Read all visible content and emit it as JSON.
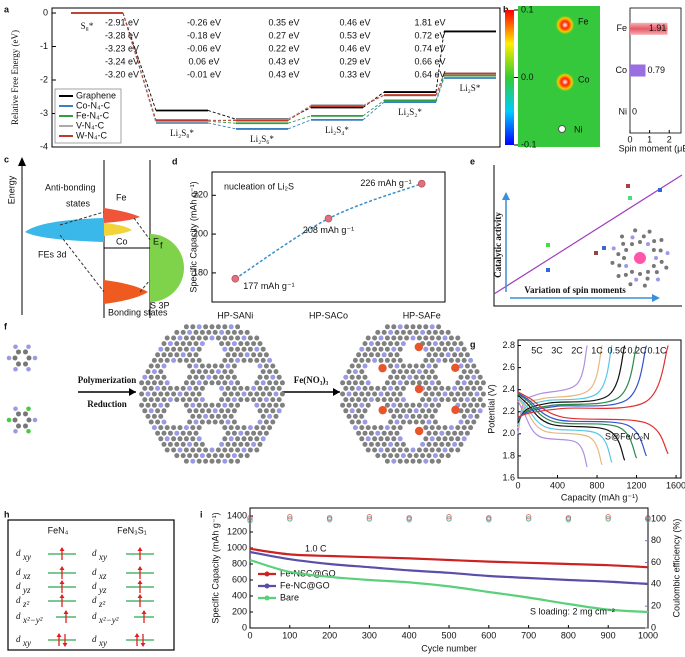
{
  "panel_labels": [
    "a",
    "b",
    "c",
    "d",
    "e",
    "f",
    "g",
    "h",
    "i"
  ],
  "chart_data": [
    {
      "type": "step",
      "ylabel": "Relative Free Energy (eV)",
      "ylim": [
        -4,
        0.15
      ],
      "yticks": [
        0,
        -1,
        -2,
        -3,
        -4
      ],
      "categories": [
        "S₈*",
        "Li₂S₈*",
        "Li₂S₆*",
        "Li₂S₄*",
        "Li₂S₂*",
        "Li₂S*"
      ],
      "legend": "lower left",
      "series": [
        {
          "name": "Graphene",
          "color": "#000000",
          "values": [
            0,
            -2.91,
            -3.17,
            -2.82,
            -2.36,
            -0.55
          ],
          "energy_labels": [
            "-2.91 eV",
            "-0.26 eV",
            "0.35 eV",
            "0.46 eV",
            "1.81 eV"
          ]
        },
        {
          "name": "Co-N₄-C",
          "color": "#3a7fc0",
          "values": [
            0,
            -3.28,
            -3.46,
            -3.19,
            -2.66,
            -1.94
          ],
          "energy_labels": [
            "-3.28 eV",
            "-0.18 eV",
            "0.27 eV",
            "0.53 eV",
            "0.72 eV"
          ]
        },
        {
          "name": "Fe-N₄-C",
          "color": "#2e9e3e",
          "values": [
            0,
            -3.23,
            -3.29,
            -3.07,
            -2.61,
            -1.87
          ],
          "energy_labels": [
            "-3.23 eV",
            "-0.06 eV",
            "0.22 eV",
            "0.46 eV",
            "0.74 eV"
          ]
        },
        {
          "name": "V-N₄-C",
          "color": "#aaaaaa",
          "values": [
            0,
            -3.24,
            -3.18,
            -2.75,
            -2.46,
            -1.8
          ],
          "energy_labels": [
            "-3.24 eV",
            "0.06 eV",
            "0.43 eV",
            "0.29 eV",
            "0.66 eV"
          ]
        },
        {
          "name": "W-N₄-C",
          "color": "#c0392b",
          "values": [
            0,
            -3.2,
            -3.21,
            -2.78,
            -2.45,
            -1.81
          ],
          "energy_labels": [
            "-3.20 eV",
            "-0.01 eV",
            "0.43 eV",
            "0.33 eV",
            "0.64 eV"
          ]
        }
      ]
    },
    {
      "type": "hbar",
      "categories": [
        "Fe",
        "Co",
        "Ni"
      ],
      "values": [
        1.91,
        0.79,
        0
      ],
      "colors": [
        "#e45a66",
        "#9a6ee0",
        "#888888"
      ],
      "xlabel": "Spin moment (μB)",
      "xlim": [
        0,
        2.6
      ],
      "xticks": [
        0,
        1,
        2
      ]
    },
    {
      "type": "scatter",
      "title": "nucleation of Li₂S",
      "ylabel": "Specific Capacity (mAh g⁻¹)",
      "categories": [
        "HP-SANi",
        "HP-SACo",
        "HP-SAFe"
      ],
      "values": [
        177,
        208,
        226
      ],
      "value_labels": [
        "177 mAh g⁻¹",
        "208 mAh g⁻¹",
        "226 mAh g⁻¹"
      ],
      "ylim": [
        165,
        232
      ],
      "yticks": [
        180,
        200,
        220
      ],
      "color": "#e07080",
      "line_color": "#3a8ec8"
    },
    {
      "type": "line",
      "xlabel": "Capacity (mAh g⁻¹)",
      "ylabel": "Potential (V)",
      "xlim": [
        0,
        1650
      ],
      "ylim": [
        1.6,
        2.85
      ],
      "xticks": [
        0,
        400,
        800,
        1200,
        1600
      ],
      "yticks": [
        1.6,
        1.8,
        {
          "value": 2,
          "label": "2.0"
        },
        2.2,
        2.4,
        2.6,
        2.8
      ],
      "annotation": "S@Fe/C₂N",
      "annotation_color": "#e03030",
      "series": [
        {
          "name": "5C",
          "color": "#b08fe0",
          "x": [
            0,
            56,
            210,
            595,
            700
          ],
          "discharge": [
            2.3,
            2.2,
            1.98,
            1.92,
            1.7
          ],
          "charge": [
            2.0,
            2.28,
            2.36,
            2.45,
            2.8
          ]
        },
        {
          "name": "3C",
          "color": "#e6b880",
          "x": [
            0,
            68,
            255,
            723,
            850
          ],
          "discharge": [
            2.32,
            2.24,
            2.03,
            1.97,
            1.72
          ],
          "charge": [
            2.05,
            2.26,
            2.32,
            2.4,
            2.8
          ]
        },
        {
          "name": "2C",
          "color": "#55c8e8",
          "x": [
            0,
            76,
            285,
            808,
            950
          ],
          "discharge": [
            2.33,
            2.26,
            2.06,
            2.0,
            1.74
          ],
          "charge": [
            2.08,
            2.24,
            2.3,
            2.37,
            2.8
          ]
        },
        {
          "name": "1C",
          "color": "#111111",
          "x": [
            0,
            86,
            324,
            918,
            1080
          ],
          "discharge": [
            2.35,
            2.28,
            2.09,
            2.03,
            1.76
          ],
          "charge": [
            2.1,
            2.22,
            2.28,
            2.35,
            2.8
          ]
        },
        {
          "name": "0.5C",
          "color": "#2a8a4a",
          "x": [
            0,
            96,
            360,
            1020,
            1200
          ],
          "discharge": [
            2.36,
            2.3,
            2.11,
            2.06,
            1.78
          ],
          "charge": [
            2.12,
            2.21,
            2.26,
            2.33,
            2.8
          ]
        },
        {
          "name": "0.2C",
          "color": "#3355cc",
          "x": [
            0,
            104,
            390,
            1105,
            1300
          ],
          "discharge": [
            2.37,
            2.31,
            2.13,
            2.08,
            1.8
          ],
          "charge": [
            2.14,
            2.2,
            2.25,
            2.31,
            2.8
          ]
        },
        {
          "name": "0.1C",
          "color": "#e03030",
          "x": [
            0,
            122,
            456,
            1292,
            1520
          ],
          "discharge": [
            2.38,
            2.32,
            2.15,
            2.1,
            1.82
          ],
          "charge": [
            2.15,
            2.19,
            2.23,
            2.29,
            2.8
          ]
        }
      ]
    },
    {
      "type": "line",
      "xlabel": "Cycle number",
      "ylabel": "Specific Capacity (mAh g⁻¹)",
      "y2label": "Coulombic efficiency (%)",
      "x": [
        0,
        100,
        200,
        300,
        400,
        500,
        600,
        700,
        800,
        900,
        1000
      ],
      "xlim": [
        0,
        1000
      ],
      "xticks": [
        0,
        100,
        200,
        300,
        400,
        500,
        600,
        700,
        800,
        900,
        1000
      ],
      "ylim": [
        0,
        1500
      ],
      "yticks": [
        0,
        200,
        400,
        600,
        800,
        1000,
        1200,
        1400
      ],
      "y2lim": [
        0,
        110
      ],
      "y2ticks": [
        0,
        20,
        40,
        60,
        80,
        100
      ],
      "y2color": "#7a6fc0",
      "annotations": [
        "1.0 C",
        "S loading: 2 mg cm⁻²"
      ],
      "legend": "lower left",
      "series": [
        {
          "name": "Fe-NSC@GO",
          "color": "#cc2222",
          "values": [
            990,
            920,
            900,
            885,
            870,
            850,
            830,
            815,
            800,
            785,
            760
          ],
          "efficiency": [
            101,
            102,
            101,
            102,
            101,
            102,
            101,
            102,
            101,
            102,
            101
          ]
        },
        {
          "name": "Fe-NC@GO",
          "color": "#5a4ea8",
          "values": [
            950,
            860,
            800,
            760,
            720,
            690,
            650,
            625,
            600,
            580,
            550
          ],
          "efficiency": [
            99,
            100,
            100,
            100,
            100,
            100,
            100,
            100,
            100,
            100,
            100
          ]
        },
        {
          "name": "Bare",
          "color": "#5ad07a",
          "values": [
            850,
            700,
            640,
            600,
            570,
            520,
            450,
            380,
            300,
            230,
            200
          ],
          "efficiency": [
            98,
            100,
            99,
            100,
            99,
            100,
            99,
            100,
            99,
            100,
            99
          ]
        }
      ]
    }
  ],
  "panel_b_map": {
    "atoms": [
      "Fe",
      "Co",
      "Ni"
    ],
    "colorbar_lim": [
      -0.1,
      0.1
    ],
    "colorbar_ticks": [
      0.1,
      {
        "value": 0,
        "label": "0.0"
      },
      -0.1
    ]
  },
  "panel_c": {
    "energy": "Energy",
    "antibonding": [
      "Anti-bonding",
      "states"
    ],
    "fe": "Fe",
    "co": "Co",
    "ef": [
      "E",
      "f"
    ],
    "fes": "FEs 3d",
    "bonding": "Bonding states",
    "s3p": "S 3P"
  },
  "panel_e": {
    "y_label": "Catalytic activity",
    "x_label": "Variation of spin moments"
  },
  "panel_f": {
    "steps": [
      "Polymerization",
      "Reduction"
    ],
    "reagent": "Fe(NO₃)₃"
  },
  "panel_h": {
    "columns": [
      "FeN₄",
      "FeN₃S₁"
    ],
    "orbital_letter": "d",
    "orbitals": [
      "xy",
      "xz",
      "yz",
      "z²",
      "x²−y²",
      "xy"
    ]
  }
}
